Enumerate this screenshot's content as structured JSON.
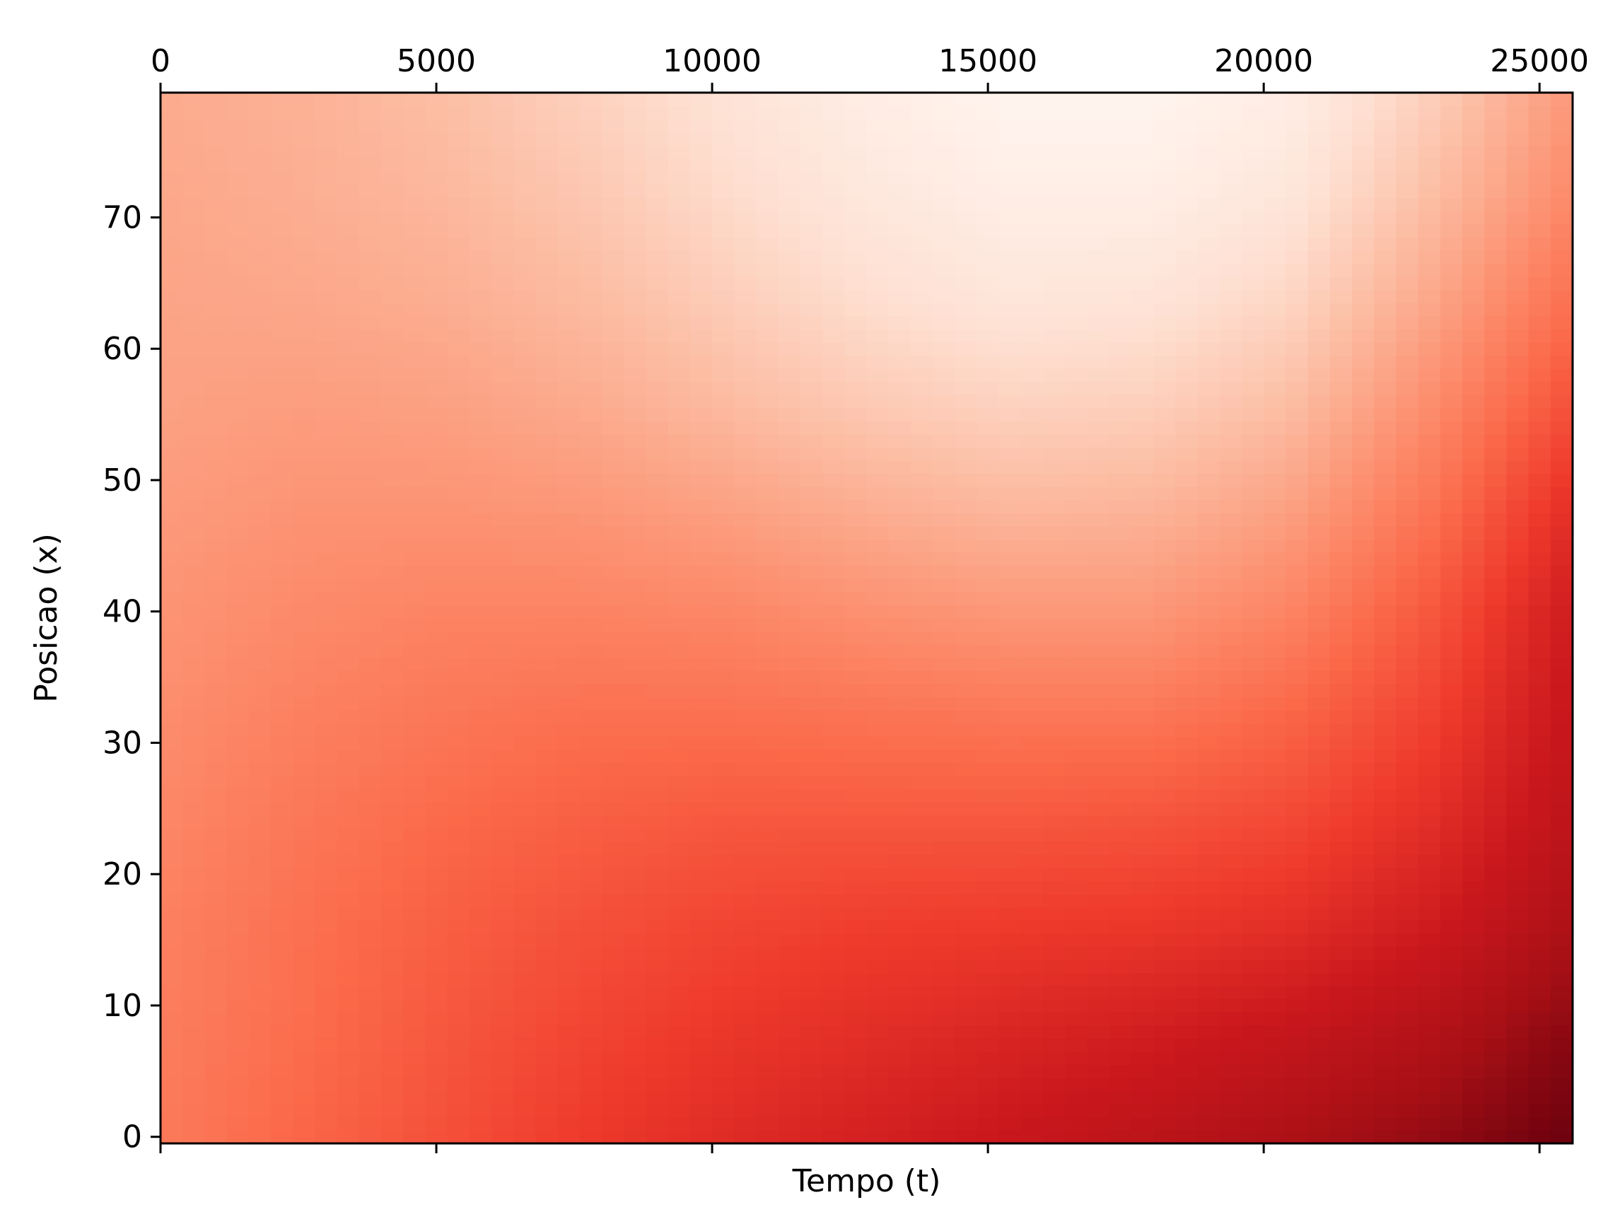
{
  "chart_data": {
    "type": "heatmap",
    "title": "",
    "xlabel": "Tempo (t)",
    "ylabel": "Posicao (x)",
    "xlim": [
      0,
      25600
    ],
    "ylim": [
      -0.5,
      79.5
    ],
    "x_ticks": [
      0,
      5000,
      10000,
      15000,
      20000,
      25000
    ],
    "x_tick_labels": [
      "0",
      "5000",
      "10000",
      "15000",
      "20000",
      "25000"
    ],
    "x_tick_labels_position": "top",
    "y_ticks": [
      0,
      10,
      20,
      30,
      40,
      50,
      60,
      70
    ],
    "y_tick_labels": [
      "0",
      "10",
      "20",
      "30",
      "40",
      "50",
      "60",
      "70"
    ],
    "colormap": "Reds",
    "colormap_stops": [
      "#fff5f0",
      "#fee0d2",
      "#fcbba1",
      "#fc9272",
      "#fb6a4a",
      "#ef3b2c",
      "#cb181d",
      "#a50f15",
      "#67000d"
    ],
    "grid": false,
    "legend": "none",
    "x": [
      0,
      2560,
      5120,
      7680,
      10240,
      12800,
      15360,
      17920,
      20480,
      23040,
      25600
    ],
    "y": [
      0,
      8,
      16,
      24,
      32,
      40,
      48,
      56,
      64,
      72,
      79
    ],
    "z": [
      [
        0.45,
        0.51,
        0.57,
        0.63,
        0.68,
        0.72,
        0.76,
        0.8,
        0.85,
        0.91,
        0.99
      ],
      [
        0.44,
        0.49,
        0.55,
        0.6,
        0.64,
        0.67,
        0.7,
        0.73,
        0.77,
        0.83,
        0.93
      ],
      [
        0.43,
        0.48,
        0.53,
        0.57,
        0.6,
        0.62,
        0.63,
        0.64,
        0.67,
        0.74,
        0.85
      ],
      [
        0.41,
        0.46,
        0.5,
        0.53,
        0.55,
        0.55,
        0.55,
        0.56,
        0.59,
        0.67,
        0.8
      ],
      [
        0.39,
        0.43,
        0.46,
        0.48,
        0.48,
        0.47,
        0.46,
        0.46,
        0.51,
        0.61,
        0.77
      ],
      [
        0.37,
        0.4,
        0.42,
        0.42,
        0.41,
        0.38,
        0.36,
        0.36,
        0.42,
        0.55,
        0.74
      ],
      [
        0.35,
        0.37,
        0.37,
        0.36,
        0.33,
        0.29,
        0.26,
        0.27,
        0.33,
        0.47,
        0.67
      ],
      [
        0.33,
        0.34,
        0.33,
        0.3,
        0.25,
        0.2,
        0.17,
        0.18,
        0.24,
        0.39,
        0.57
      ],
      [
        0.32,
        0.31,
        0.29,
        0.25,
        0.19,
        0.13,
        0.09,
        0.1,
        0.16,
        0.31,
        0.48
      ],
      [
        0.31,
        0.29,
        0.26,
        0.21,
        0.14,
        0.08,
        0.04,
        0.04,
        0.09,
        0.24,
        0.4
      ],
      [
        0.3,
        0.28,
        0.24,
        0.18,
        0.11,
        0.05,
        0.01,
        0.01,
        0.05,
        0.19,
        0.36
      ]
    ]
  }
}
